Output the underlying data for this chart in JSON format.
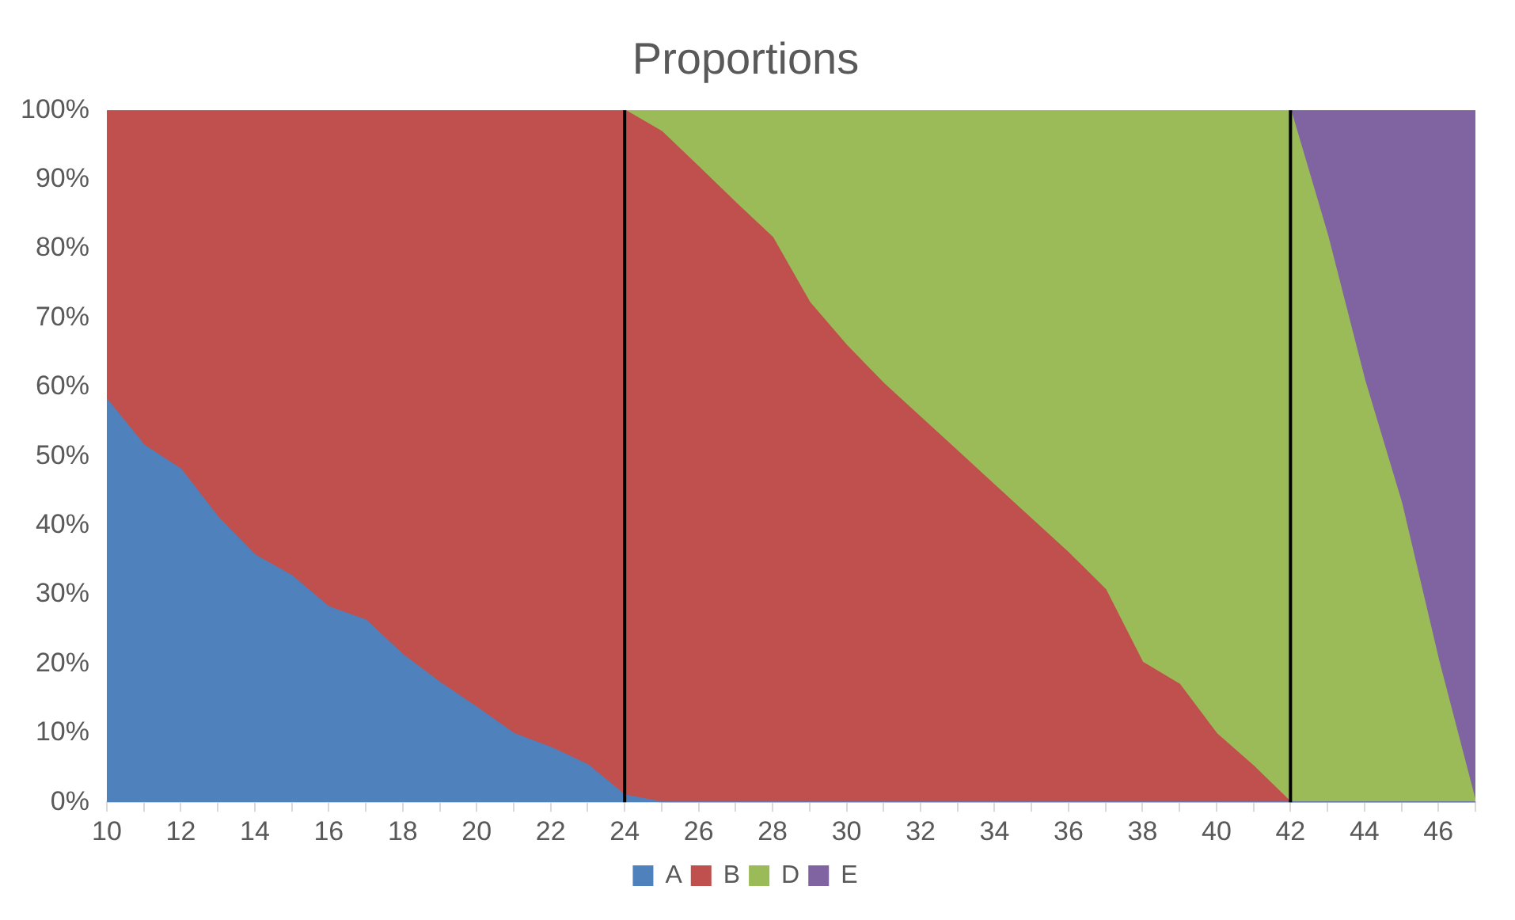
{
  "chart_data": {
    "type": "area",
    "title": "Proportions",
    "stacked": true,
    "x": [
      10,
      11,
      12,
      13,
      14,
      15,
      16,
      17,
      18,
      19,
      20,
      21,
      22,
      23,
      24,
      25,
      26,
      27,
      28,
      29,
      30,
      31,
      32,
      33,
      34,
      35,
      36,
      37,
      38,
      39,
      40,
      41,
      42,
      43,
      44,
      45,
      46,
      47
    ],
    "xlim": [
      10,
      47
    ],
    "xticks": [
      10,
      {
        "value": 11,
        "label": null
      },
      12,
      {
        "value": 13,
        "label": null
      },
      14,
      {
        "value": 15,
        "label": null
      },
      16,
      {
        "value": 17,
        "label": null
      },
      18,
      {
        "value": 19,
        "label": null
      },
      20,
      {
        "value": 21,
        "label": null
      },
      22,
      {
        "value": 23,
        "label": null
      },
      24,
      {
        "value": 25,
        "label": null
      },
      26,
      {
        "value": 27,
        "label": null
      },
      28,
      {
        "value": 29,
        "label": null
      },
      30,
      {
        "value": 31,
        "label": null
      },
      32,
      {
        "value": 33,
        "label": null
      },
      34,
      {
        "value": 35,
        "label": null
      },
      36,
      {
        "value": 37,
        "label": null
      },
      38,
      {
        "value": 39,
        "label": null
      },
      40,
      {
        "value": 41,
        "label": null
      },
      42,
      {
        "value": 43,
        "label": null
      },
      44,
      {
        "value": 45,
        "label": null
      },
      46,
      {
        "value": 47,
        "label": null
      }
    ],
    "ylim": [
      0,
      100
    ],
    "yticks": [
      {
        "value": 0,
        "label": "0%"
      },
      {
        "value": 10,
        "label": "10%"
      },
      {
        "value": 20,
        "label": "20%"
      },
      {
        "value": 30,
        "label": "30%"
      },
      {
        "value": 40,
        "label": "40%"
      },
      {
        "value": 50,
        "label": "50%"
      },
      {
        "value": 60,
        "label": "60%"
      },
      {
        "value": 70,
        "label": "70%"
      },
      {
        "value": 80,
        "label": "80%"
      },
      {
        "value": 90,
        "label": "90%"
      },
      {
        "value": 100,
        "label": "100%"
      }
    ],
    "series": [
      {
        "name": "A",
        "color": "#4f81bd",
        "values": [
          58.2,
          51.6,
          48.1,
          41.2,
          35.7,
          32.7,
          28.2,
          26.3,
          21.3,
          17.3,
          13.7,
          9.9,
          7.9,
          5.4,
          1,
          0,
          0,
          0,
          0,
          0,
          0,
          0,
          0,
          0,
          0,
          0,
          0,
          0,
          0,
          0,
          0,
          0,
          0,
          0,
          0,
          0,
          0,
          0
        ]
      },
      {
        "name": "B",
        "color": "#c0504d",
        "values": [
          41.8,
          48.4,
          51.9,
          58.8,
          64.3,
          67.3,
          71.8,
          73.7,
          78.7,
          82.7,
          86.3,
          90.1,
          92.1,
          94.6,
          99,
          96.9,
          91.8,
          86.6,
          81.6,
          72.2,
          66,
          60.5,
          55.6,
          50.7,
          45.8,
          40.9,
          36,
          30.7,
          20.2,
          17,
          9.9,
          5.2,
          0,
          0,
          0,
          0,
          0,
          0
        ]
      },
      {
        "name": "D",
        "color": "#9bbb59",
        "values": [
          null,
          null,
          null,
          null,
          null,
          null,
          null,
          null,
          null,
          null,
          null,
          null,
          null,
          null,
          0,
          3.1,
          8.2,
          13.4,
          18.4,
          27.8,
          34,
          39.5,
          44.4,
          49.3,
          54.2,
          59.1,
          64,
          69.3,
          79.8,
          83,
          90.1,
          94.8,
          100,
          81.9,
          61,
          43.2,
          20.5,
          0
        ]
      },
      {
        "name": "E",
        "color": "#8064a2",
        "values": [
          null,
          null,
          null,
          null,
          null,
          null,
          null,
          null,
          null,
          null,
          null,
          null,
          null,
          null,
          null,
          null,
          null,
          null,
          null,
          null,
          null,
          null,
          null,
          null,
          null,
          null,
          null,
          null,
          null,
          null,
          null,
          null,
          0,
          18.1,
          39,
          56.8,
          79.5,
          100
        ]
      }
    ],
    "ref_lines": [
      {
        "axis": "x",
        "value": 24,
        "color": "#000000"
      },
      {
        "axis": "x",
        "value": 42,
        "color": "#000000"
      }
    ],
    "legend": "bottom"
  }
}
